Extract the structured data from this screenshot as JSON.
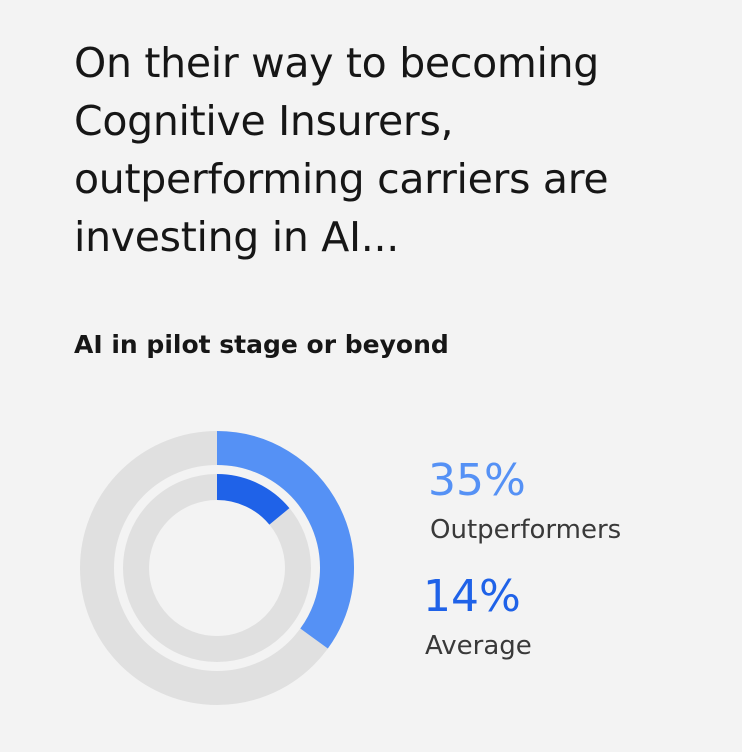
{
  "chart_data": {
    "type": "nested-donut",
    "title": "On their way to becoming Cognitive Insurers, outperforming carriers are investing in AI...",
    "subtitle": "AI in pilot stage or beyond",
    "ylim": [
      0,
      100
    ],
    "track_color": "#e0e0e0",
    "series": [
      {
        "name": "Outperformers",
        "color": "#5591f5",
        "values": [
          35
        ],
        "value_labels": [
          "35%"
        ]
      },
      {
        "name": "Average",
        "color": "#1f62e8",
        "values": [
          14
        ],
        "value_labels": [
          "14%"
        ]
      }
    ]
  }
}
